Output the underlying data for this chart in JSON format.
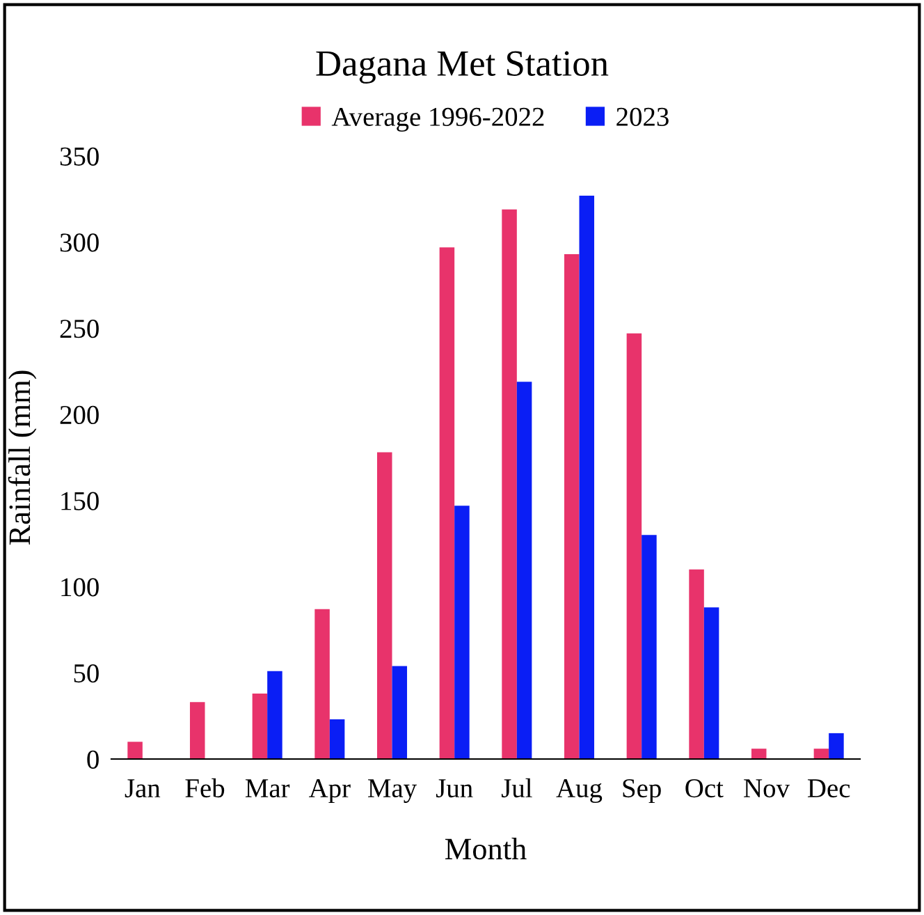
{
  "chart_data": {
    "type": "bar",
    "title": "Dagana Met Station",
    "xlabel": "Month",
    "ylabel": "Rainfall (mm)",
    "categories": [
      "Jan",
      "Feb",
      "Mar",
      "Apr",
      "May",
      "Jun",
      "Jul",
      "Aug",
      "Sep",
      "Oct",
      "Nov",
      "Dec"
    ],
    "series": [
      {
        "name": "Average 1996-2022",
        "color": "#e8336b",
        "values": [
          10,
          33,
          38,
          87,
          178,
          297,
          319,
          293,
          247,
          110,
          6,
          6
        ]
      },
      {
        "name": "2023",
        "color": "#0a1ef5",
        "values": [
          0,
          0,
          51,
          23,
          54,
          147,
          219,
          327,
          130,
          88,
          0,
          15
        ]
      }
    ],
    "ylim": [
      0,
      350
    ],
    "yticks": [
      0,
      50,
      100,
      150,
      200,
      250,
      300,
      350
    ],
    "grid": false,
    "legend": "top"
  }
}
